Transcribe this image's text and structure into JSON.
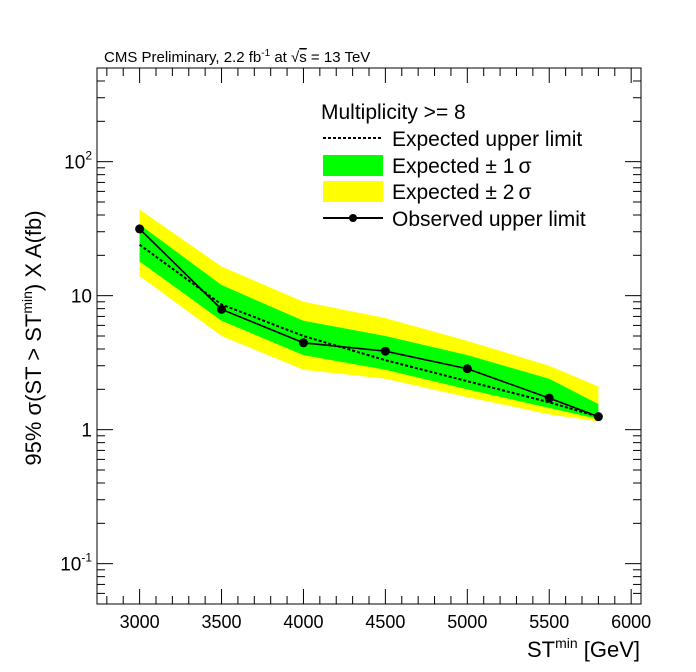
{
  "chart_data": {
    "type": "line",
    "header": {
      "prefix": "CMS Preliminary, 2.2 fb",
      "lumi_exp": "-1",
      "middle": " at ",
      "sqrt": "√",
      "s_label": "s",
      "suffix": " = 13 TeV"
    },
    "legend": {
      "header": "Multiplicity >= 8",
      "expected": "Expected upper limit",
      "band1_prefix": "Expected ± 1",
      "band2_prefix": "Expected ± 2",
      "sigma": "σ",
      "observed": "Observed upper limit"
    },
    "xlabel": {
      "base": "ST",
      "sup": "min",
      "unit": " [GeV]"
    },
    "ylabel": {
      "part1": "95% σ(ST > ST",
      "sup": "min",
      "part2": ") X A(fb)"
    },
    "x_axis": {
      "min": 2740,
      "max": 6060,
      "ticks": [
        3000,
        3500,
        4000,
        4500,
        5000,
        5500,
        6000
      ],
      "tick_labels": [
        "3000",
        "3500",
        "4000",
        "4500",
        "5000",
        "5500",
        "6000"
      ]
    },
    "y_axis": {
      "scale": "log",
      "min": 0.05,
      "max": 500,
      "major_ticks": [
        0.1,
        1,
        10,
        100
      ],
      "labels": [
        {
          "value": 0.1,
          "base": "10",
          "exp": "-1"
        },
        {
          "value": 1,
          "base": "1",
          "exp": ""
        },
        {
          "value": 10,
          "base": "10",
          "exp": ""
        },
        {
          "value": 100,
          "base": "10",
          "exp": "2"
        }
      ]
    },
    "x": [
      3000,
      3500,
      4000,
      4500,
      5000,
      5500,
      5800
    ],
    "observed": [
      31.5,
      7.9,
      4.45,
      3.85,
      2.85,
      1.72,
      1.25
    ],
    "expected": [
      24.0,
      8.6,
      5.0,
      3.3,
      2.3,
      1.6,
      1.25
    ],
    "band1_low": [
      18.0,
      6.5,
      3.6,
      2.8,
      2.0,
      1.45,
      1.2
    ],
    "band1_high": [
      34.0,
      12.0,
      6.5,
      5.0,
      3.6,
      2.4,
      1.55
    ],
    "band2_low": [
      14.0,
      5.0,
      2.8,
      2.4,
      1.75,
      1.3,
      1.15
    ],
    "band2_high": [
      44.0,
      16.5,
      9.0,
      6.8,
      4.6,
      3.0,
      2.1
    ],
    "colors": {
      "band1": "#00ff00",
      "band2": "#ffff00",
      "lines": "#000000"
    },
    "grid": false,
    "legend_position": "top-right"
  }
}
